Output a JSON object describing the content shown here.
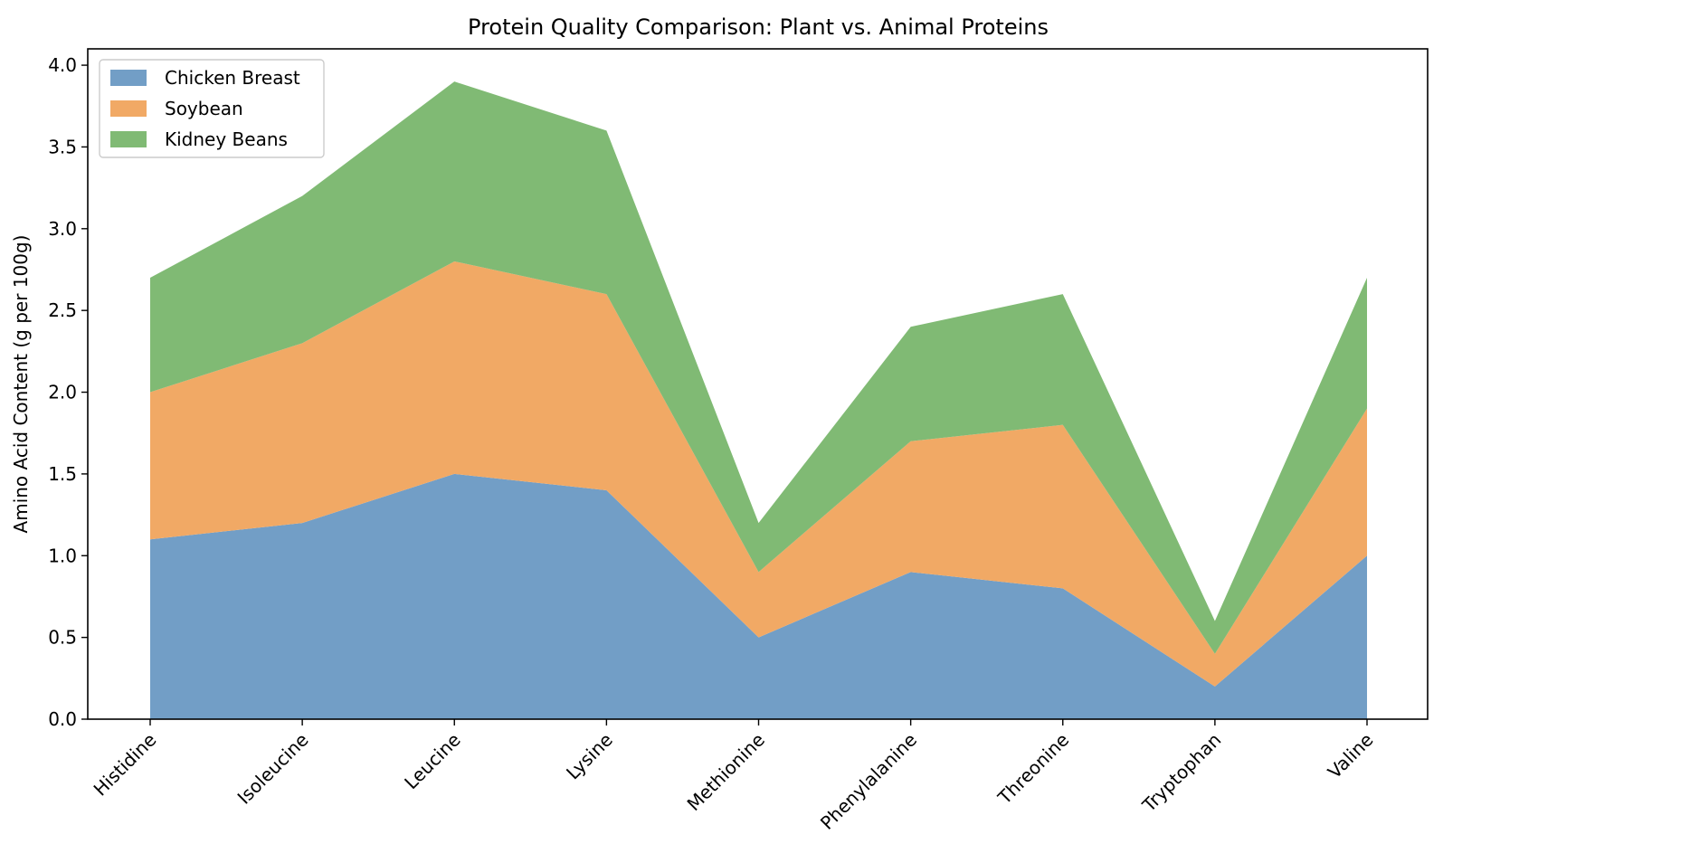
{
  "chart_data": {
    "type": "area",
    "stacked": true,
    "title": "Protein Quality Comparison: Plant vs. Animal Proteins",
    "xlabel": "",
    "ylabel": "Amino Acid Content (g per 100g)",
    "categories": [
      "Histidine",
      "Isoleucine",
      "Leucine",
      "Lysine",
      "Methionine",
      "Phenylalanine",
      "Threonine",
      "Tryptophan",
      "Valine"
    ],
    "series": [
      {
        "name": "Chicken Breast",
        "color": "#729ec6",
        "values": [
          1.1,
          1.2,
          1.5,
          1.4,
          0.5,
          0.9,
          0.8,
          0.2,
          1.0
        ]
      },
      {
        "name": "Soybean",
        "color": "#f1a965",
        "values": [
          0.9,
          1.1,
          1.3,
          1.2,
          0.4,
          0.8,
          1.0,
          0.2,
          0.9
        ]
      },
      {
        "name": "Kidney Beans",
        "color": "#80ba74",
        "values": [
          0.7,
          0.9,
          1.1,
          1.0,
          0.3,
          0.7,
          0.8,
          0.2,
          0.8
        ]
      }
    ],
    "ylim": [
      0,
      4.1
    ],
    "yticks": [
      "0.0",
      "0.5",
      "1.0",
      "1.5",
      "2.0",
      "2.5",
      "3.0",
      "3.5",
      "4.0"
    ],
    "grid": false,
    "legend_position": "top-left"
  }
}
